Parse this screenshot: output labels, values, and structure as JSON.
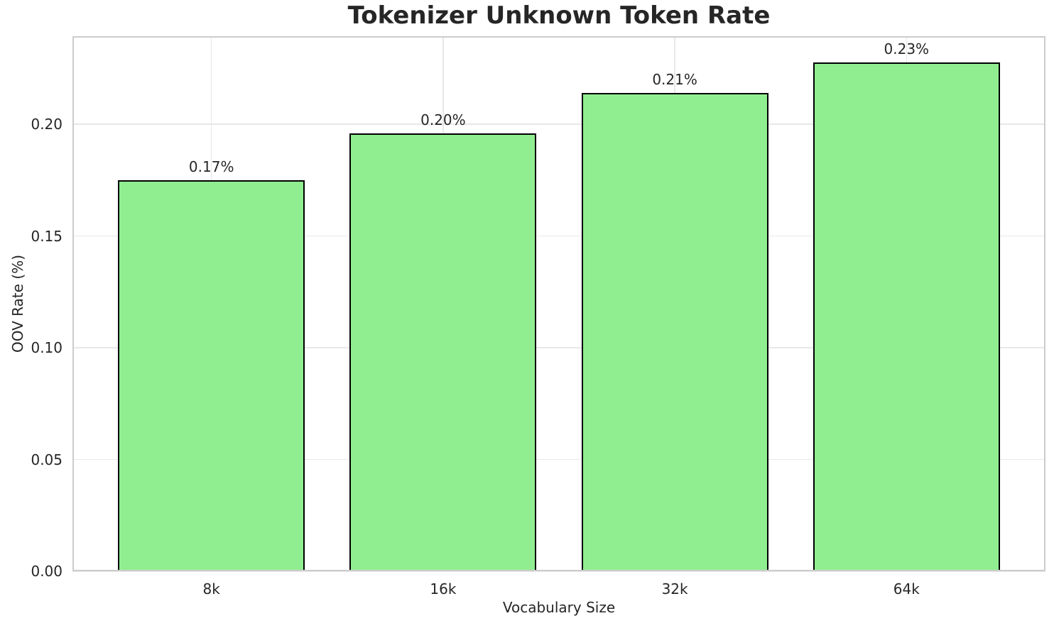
{
  "chart_data": {
    "type": "bar",
    "title": "Tokenizer Unknown Token Rate",
    "xlabel": "Vocabulary Size",
    "ylabel": "OOV Rate (%)",
    "categories": [
      "8k",
      "16k",
      "32k",
      "64k"
    ],
    "values": [
      0.175,
      0.196,
      0.214,
      0.2275
    ],
    "bar_labels": [
      "0.17%",
      "0.20%",
      "0.21%",
      "0.23%"
    ],
    "yticks": [
      0,
      0.05,
      0.1,
      0.15,
      0.2
    ],
    "ytick_labels": [
      "0.00",
      "0.05",
      "0.10",
      "0.15",
      "0.20"
    ],
    "ylim": [
      0,
      0.2394
    ],
    "xlim": [
      -0.6,
      3.6
    ],
    "bar_width": 0.8,
    "grid": true,
    "legend": false,
    "colors": {
      "bar_fill": "#90EE90",
      "bar_edge": "#000000",
      "grid_line": "#E8E8E8",
      "spine": "#CCCCCC",
      "text": "#262626",
      "background": "#FFFFFF"
    }
  }
}
